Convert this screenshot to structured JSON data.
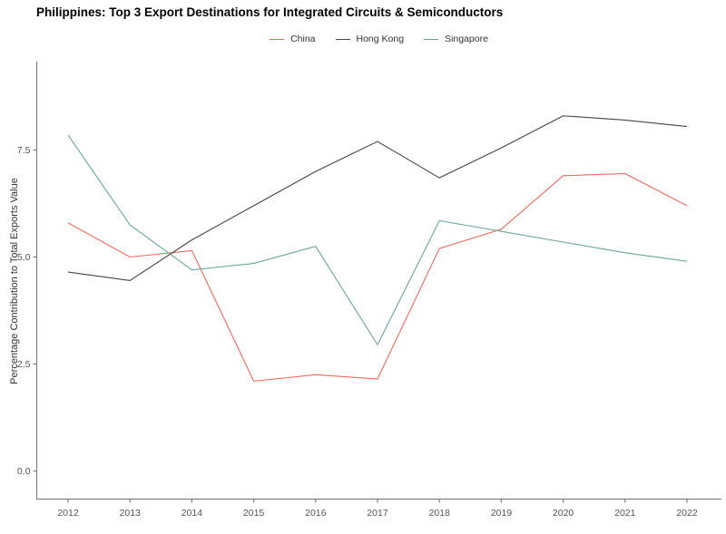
{
  "title": "Philippines: Top 3 Export Destinations for Integrated Circuits & Semiconductors",
  "chart_data": {
    "type": "line",
    "categories": [
      "2012",
      "2013",
      "2014",
      "2015",
      "2016",
      "2017",
      "2018",
      "2019",
      "2020",
      "2021",
      "2022"
    ],
    "series": [
      {
        "name": "China",
        "color": "#ee6a5f",
        "values": [
          5.8,
          5.0,
          5.15,
          2.1,
          2.25,
          2.15,
          5.2,
          5.65,
          6.9,
          6.95,
          6.2
        ]
      },
      {
        "name": "Hong Kong",
        "color": "#454545",
        "values": [
          4.65,
          4.45,
          5.4,
          6.2,
          7.0,
          7.7,
          6.85,
          7.55,
          8.3,
          8.2,
          8.05
        ]
      },
      {
        "name": "Singapore",
        "color": "#6aa69b",
        "values": [
          7.85,
          5.75,
          4.7,
          4.85,
          5.25,
          2.95,
          5.85,
          5.6,
          5.35,
          5.1,
          4.9
        ]
      }
    ],
    "xlabel": "",
    "ylabel": "Percentage Contribution to Total Exports Value",
    "yticks": [
      0.0,
      2.5,
      5.0,
      7.5
    ],
    "ytick_labels": [
      "0.0",
      "2.5",
      "5.0",
      "7.5"
    ],
    "ylim": [
      0,
      9.6
    ],
    "grid": false,
    "legend_position": "top-center",
    "axis_color": "#808080",
    "tick_label_color": "#555555"
  }
}
